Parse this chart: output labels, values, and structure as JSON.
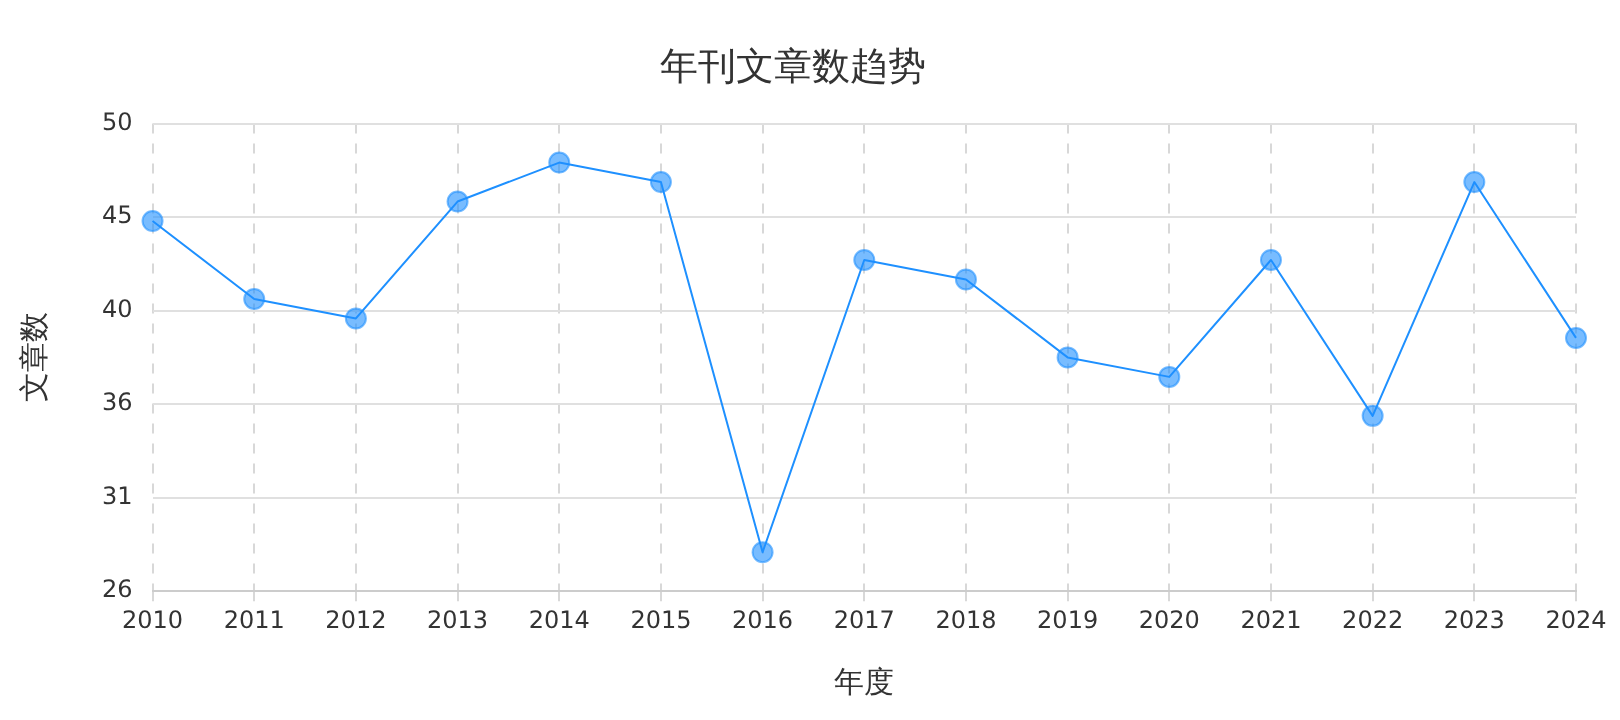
{
  "chart_data": {
    "type": "line",
    "title": "年刊文章数趋势",
    "xlabel": "年度",
    "ylabel": "文章数",
    "categories": [
      "2010",
      "2011",
      "2012",
      "2013",
      "2014",
      "2015",
      "2016",
      "2017",
      "2018",
      "2019",
      "2020",
      "2021",
      "2022",
      "2023",
      "2024"
    ],
    "series": [
      {
        "color": "#1e90ff",
        "values": [
          45,
          41,
          40,
          46,
          48,
          47,
          28,
          43,
          42,
          38,
          37,
          43,
          35,
          47,
          39
        ]
      }
    ],
    "ylim": [
      26,
      50
    ],
    "yticks": [
      {
        "value": 26,
        "label": "26"
      },
      {
        "value": 30.8,
        "label": "31"
      },
      {
        "value": 35.6,
        "label": "36"
      },
      {
        "value": 40.4,
        "label": "40"
      },
      {
        "value": 45.2,
        "label": "45"
      },
      {
        "value": 50,
        "label": "50"
      }
    ],
    "grid": true,
    "legend": false,
    "marker": "circle",
    "line_style": "solid"
  }
}
